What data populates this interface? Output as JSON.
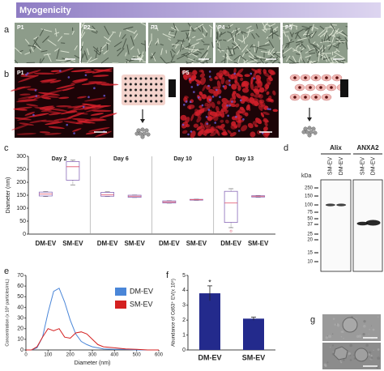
{
  "banner": "Myogenicity",
  "panel_labels": [
    "a",
    "b",
    "c",
    "d",
    "e",
    "f",
    "g"
  ],
  "passages": [
    "P1",
    "P2",
    "P3",
    "P4",
    "P5"
  ],
  "blot": {
    "kda_label": "kDa",
    "markers": [
      "250",
      "150",
      "100",
      "75",
      "50",
      "37",
      "25",
      "20",
      "15",
      "10"
    ],
    "antibodies": [
      "Alix",
      "ANXA2"
    ],
    "lanes": [
      "SM-EV",
      "DM-EV"
    ]
  },
  "chart_data": [
    {
      "type": "box",
      "y_label": "Diameter (nm)",
      "groups": [
        "Day 2",
        "Day 6",
        "Day 10",
        "Day 13"
      ],
      "categories": [
        "DM-EV",
        "SM-EV"
      ],
      "boxes": [
        [
          {
            "min": 145,
            "q1": 147,
            "median": 155,
            "q3": 162,
            "max": 164
          },
          {
            "min": 190,
            "q1": 208,
            "median": 260,
            "q3": 280,
            "max": 285
          }
        ],
        [
          {
            "min": 145,
            "q1": 146,
            "median": 152,
            "q3": 161,
            "max": 163
          },
          {
            "min": 141,
            "q1": 142,
            "median": 146,
            "q3": 150,
            "max": 151
          }
        ],
        [
          {
            "min": 119,
            "q1": 120,
            "median": 124,
            "q3": 128,
            "max": 129
          },
          {
            "min": 130,
            "q1": 131,
            "median": 133,
            "q3": 134,
            "max": 135
          }
        ],
        [
          {
            "min": 25,
            "q1": 45,
            "median": 120,
            "q3": 165,
            "max": 175,
            "outliers": [
              12
            ]
          },
          {
            "min": 142,
            "q1": 143,
            "median": 146,
            "q3": 148,
            "max": 149
          }
        ]
      ],
      "box_color": "#8a6bb8",
      "median_color": "#e0506a",
      "ylim": [
        0,
        300
      ],
      "yticks": [
        0,
        50,
        100,
        150,
        200,
        250,
        300
      ]
    },
    {
      "type": "line",
      "x_label": "Diameter (nm)",
      "y_label": "Concentration (x 10⁶ particles/mL)",
      "x": [
        0,
        25,
        50,
        75,
        100,
        125,
        150,
        175,
        200,
        225,
        250,
        275,
        300,
        325,
        350,
        400,
        450,
        500,
        550,
        600
      ],
      "series": [
        {
          "name": "DM-EV",
          "color": "#4a86d8",
          "values": [
            0,
            0,
            2,
            12,
            35,
            55,
            58,
            45,
            28,
            15,
            8,
            5,
            3,
            2,
            1,
            0.5,
            0.5,
            0,
            0,
            0
          ]
        },
        {
          "name": "SM-EV",
          "color": "#d42020",
          "values": [
            0,
            0,
            3,
            12,
            20,
            18,
            20,
            12,
            11,
            16,
            17,
            15,
            10,
            5,
            3,
            2,
            1,
            0.5,
            0,
            0
          ]
        }
      ],
      "xlim": [
        0,
        600
      ],
      "xticks": [
        0,
        100,
        200,
        300,
        400,
        500,
        600
      ],
      "ylim": [
        0,
        70
      ],
      "yticks": [
        0,
        10,
        20,
        30,
        40,
        50,
        60,
        70
      ],
      "legend": "upper right"
    },
    {
      "type": "bar",
      "y_label": "Abundance of Cd63⁺ EV(x 10⁶)",
      "categories": [
        "DM-EV",
        "SM-EV"
      ],
      "values": [
        3.8,
        2.1
      ],
      "errors": [
        0.5,
        0.1
      ],
      "annotation": "*",
      "color": "#232a8c",
      "ylim": [
        0,
        5
      ],
      "yticks": [
        0,
        1,
        2,
        3,
        4,
        5
      ]
    }
  ]
}
